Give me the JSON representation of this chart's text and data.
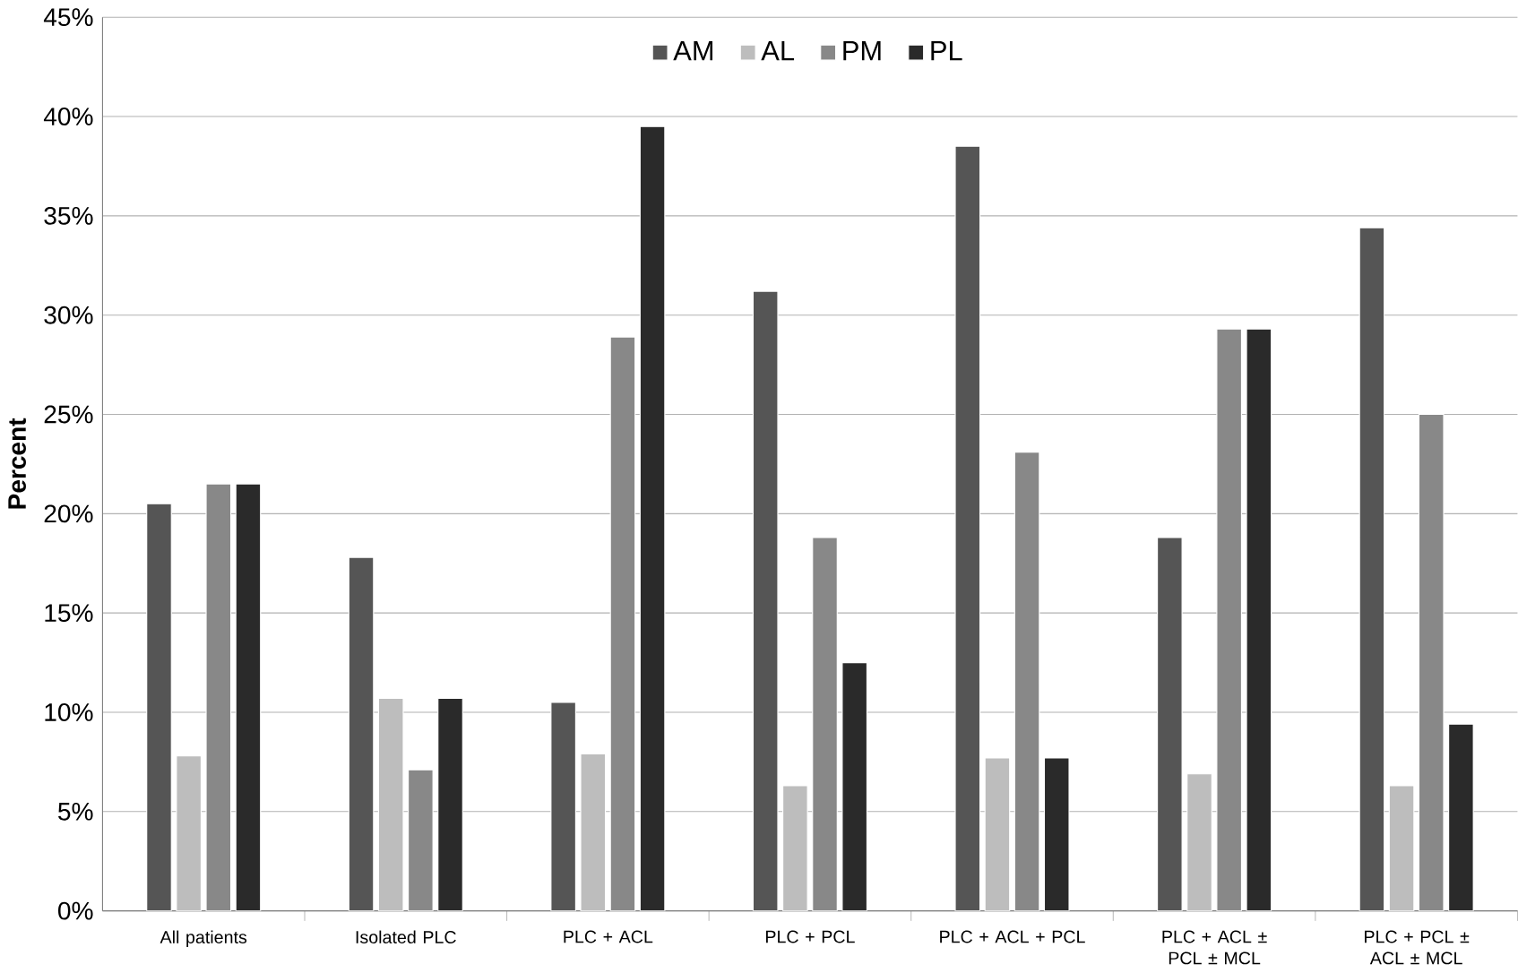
{
  "chart_data": {
    "type": "bar",
    "ylabel": "Percent",
    "categories": [
      "All patients",
      "Isolated PLC",
      "PLC + ACL",
      "PLC + PCL",
      "PLC + ACL + PCL",
      "PLC + ACL ± PCL ± MCL",
      "PLC + PCL ± ACL ± MCL"
    ],
    "series": [
      {
        "name": "AM",
        "color": "#555555",
        "values": [
          20.5,
          17.8,
          10.5,
          31.2,
          38.5,
          18.8,
          34.4
        ]
      },
      {
        "name": "AL",
        "color": "#bdbdbd",
        "values": [
          7.8,
          10.7,
          7.9,
          6.3,
          7.7,
          6.9,
          6.3
        ]
      },
      {
        "name": "PM",
        "color": "#888888",
        "values": [
          21.5,
          7.1,
          28.9,
          18.8,
          23.1,
          29.3,
          25.0
        ]
      },
      {
        "name": "PL",
        "color": "#2a2a2a",
        "values": [
          21.5,
          10.7,
          39.5,
          12.5,
          7.7,
          29.3,
          9.4
        ]
      }
    ],
    "ylim": [
      0,
      45
    ],
    "yticks": [
      {
        "value": 0,
        "label": "0%"
      },
      {
        "value": 5,
        "label": "5%"
      },
      {
        "value": 10,
        "label": "10%"
      },
      {
        "value": 15,
        "label": "15%"
      },
      {
        "value": 20,
        "label": "20%"
      },
      {
        "value": 25,
        "label": "25%"
      },
      {
        "value": 30,
        "label": "30%"
      },
      {
        "value": 35,
        "label": "35%"
      },
      {
        "value": 40,
        "label": "40%"
      },
      {
        "value": 45,
        "label": "45%"
      }
    ],
    "grid": "y",
    "legend": "top"
  }
}
